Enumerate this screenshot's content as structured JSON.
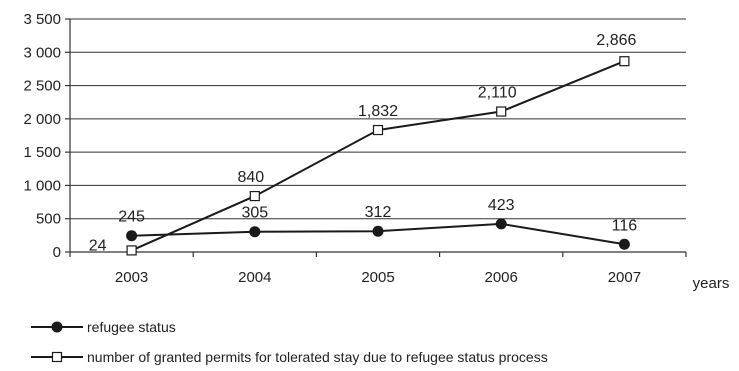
{
  "chart_data": {
    "type": "line",
    "categories": [
      "2003",
      "2004",
      "2005",
      "2006",
      "2007"
    ],
    "xlabel": "years",
    "ylabel": "",
    "ylim": [
      0,
      3500
    ],
    "y_ticks": [
      0,
      500,
      1000,
      1500,
      2000,
      2500,
      3000,
      3500
    ],
    "y_tick_labels": [
      "0",
      "500",
      "1 000",
      "1 500",
      "2 000",
      "2 500",
      "3 000",
      "3 500"
    ],
    "grid": true,
    "legend_position": "bottom",
    "series": [
      {
        "name": "refugee status",
        "marker": "filled-circle",
        "color": "#1a1a1a",
        "values": [
          245,
          305,
          312,
          423,
          116
        ],
        "labels": [
          "245",
          "305",
          "312",
          "423",
          "116"
        ]
      },
      {
        "name": "number of granted permits for tolerated stay due to refugee status process",
        "marker": "open-square",
        "color": "#1a1a1a",
        "values": [
          24,
          840,
          1832,
          2110,
          2866
        ],
        "labels": [
          "24",
          "840",
          "1,832",
          "2,110",
          "2,866"
        ]
      }
    ]
  }
}
